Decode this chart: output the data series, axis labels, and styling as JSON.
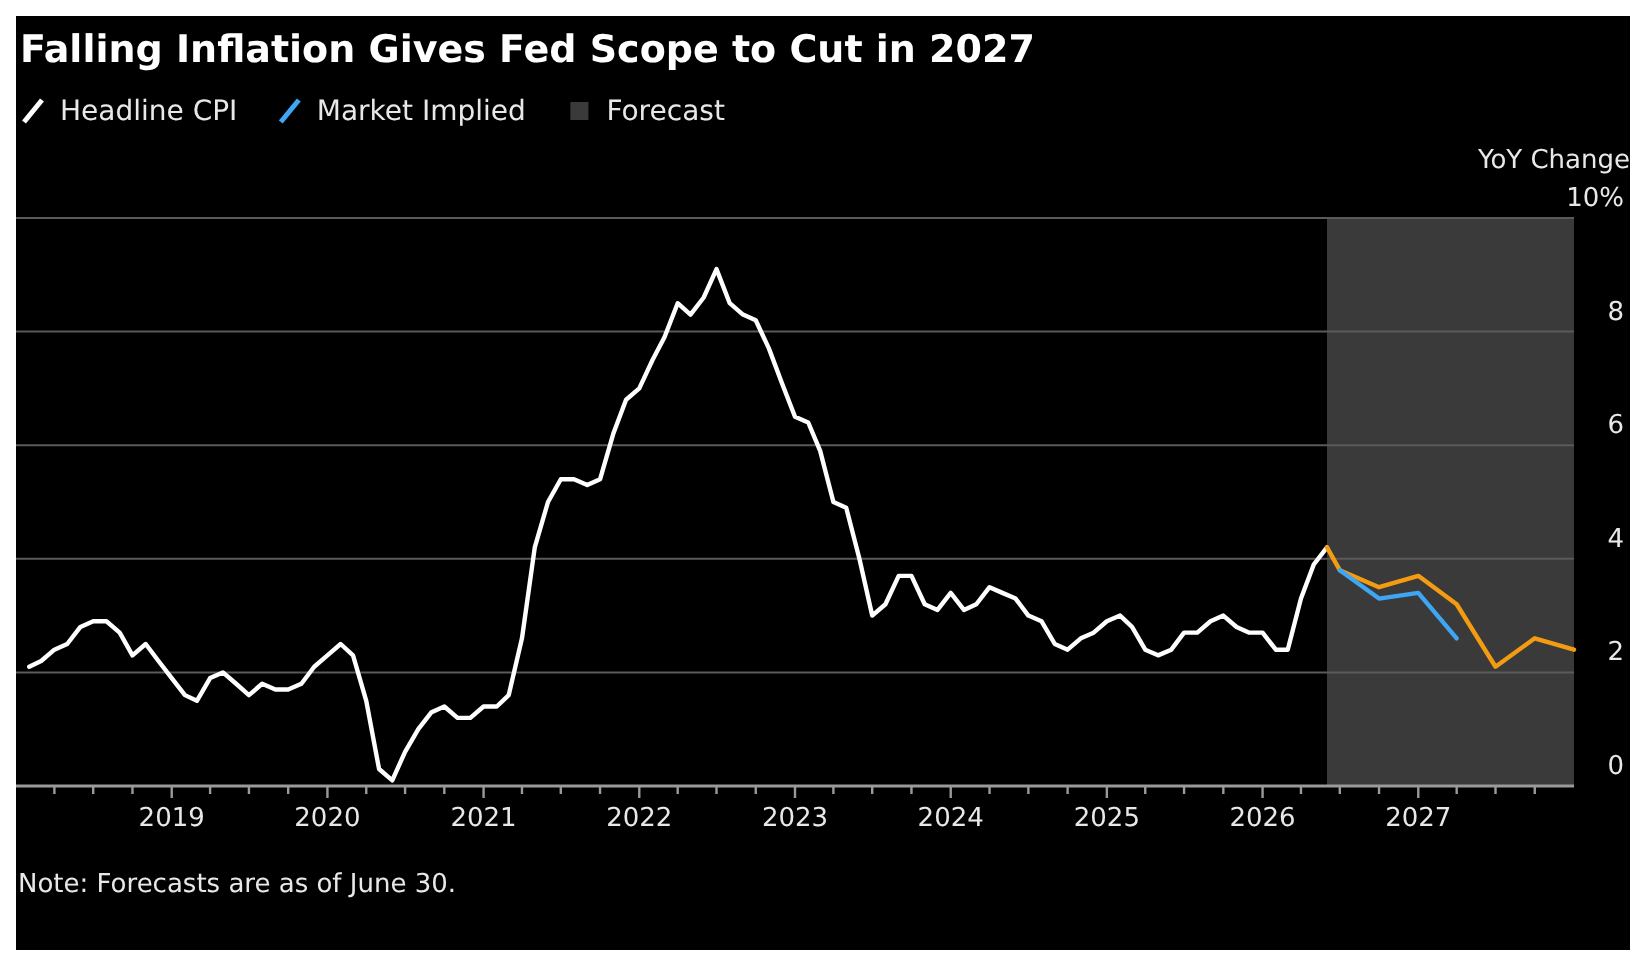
{
  "chart_data": {
    "type": "line",
    "title": "Falling Inflation Gives Fed Scope to Cut in 2027",
    "ylabel": "YoY Change",
    "annotations": [
      "Note: Forecasts are as of June 30."
    ],
    "x": [
      "2018-02",
      "2018-03",
      "2018-04",
      "2018-05",
      "2018-06",
      "2018-07",
      "2018-08",
      "2018-09",
      "2018-10",
      "2018-11",
      "2018-12",
      "2019-01",
      "2019-02",
      "2019-03",
      "2019-04",
      "2019-05",
      "2019-06",
      "2019-07",
      "2019-08",
      "2019-09",
      "2019-10",
      "2019-11",
      "2019-12",
      "2020-01",
      "2020-02",
      "2020-03",
      "2020-04",
      "2020-05",
      "2020-06",
      "2020-07",
      "2020-08",
      "2020-09",
      "2020-10",
      "2020-11",
      "2020-12",
      "2021-01",
      "2021-02",
      "2021-03",
      "2021-04",
      "2021-05",
      "2021-06",
      "2021-07",
      "2021-08",
      "2021-09",
      "2021-10",
      "2021-11",
      "2021-12",
      "2022-01",
      "2022-02",
      "2022-03",
      "2022-04",
      "2022-05",
      "2022-06",
      "2022-07",
      "2022-08",
      "2022-09",
      "2022-10",
      "2022-11",
      "2022-12",
      "2023-01",
      "2023-02",
      "2023-03",
      "2023-04",
      "2023-05",
      "2023-06",
      "2023-07",
      "2023-08",
      "2023-09",
      "2023-10",
      "2023-11",
      "2023-12",
      "2024-01",
      "2024-02",
      "2024-03",
      "2024-04",
      "2024-05",
      "2024-06",
      "2024-07",
      "2024-08",
      "2024-09",
      "2024-10",
      "2024-11",
      "2024-12",
      "2025-01",
      "2025-02",
      "2025-03",
      "2025-04",
      "2025-05",
      "2025-06",
      "2025-07",
      "2025-08",
      "2025-09",
      "2025-10",
      "2025-11",
      "2025-12",
      "2026-01",
      "2026-02",
      "2026-03",
      "2026-04",
      "2026-05",
      "2026-06"
    ],
    "series": [
      {
        "name": "Headline CPI",
        "color": "#ffffff",
        "values": [
          2.1,
          2.2,
          2.4,
          2.5,
          2.8,
          2.9,
          2.9,
          2.7,
          2.3,
          2.5,
          2.2,
          1.9,
          1.6,
          1.5,
          1.9,
          2.0,
          1.8,
          1.6,
          1.8,
          1.7,
          1.7,
          1.8,
          2.1,
          2.3,
          2.5,
          2.3,
          1.5,
          0.3,
          0.1,
          0.6,
          1.0,
          1.3,
          1.4,
          1.2,
          1.2,
          1.4,
          1.4,
          1.6,
          2.6,
          4.2,
          5.0,
          5.4,
          5.4,
          5.3,
          5.4,
          6.2,
          6.8,
          7.0,
          7.5,
          7.9,
          8.5,
          8.3,
          8.6,
          9.1,
          8.5,
          8.3,
          8.2,
          7.7,
          7.1,
          6.5,
          6.4,
          5.9,
          5.0,
          4.9,
          4.0,
          3.0,
          3.2,
          3.7,
          3.7,
          3.2,
          3.1,
          3.4,
          3.1,
          3.2,
          3.5,
          3.4,
          3.3,
          3.0,
          2.9,
          2.5,
          2.4,
          2.6,
          2.7,
          2.9,
          3.0,
          2.8,
          2.4,
          2.3,
          2.4,
          2.7,
          2.7,
          2.9,
          3.0,
          2.8,
          2.7,
          2.7,
          2.4,
          2.4,
          3.3,
          3.9,
          4.2
        ]
      },
      {
        "color": "#f39c12",
        "x": [
          "2026-06",
          "2026-07",
          "2026-10",
          "2027-01",
          "2027-04",
          "2027-07",
          "2027-10",
          "2028-01"
        ],
        "values": [
          4.2,
          3.8,
          3.5,
          3.7,
          3.2,
          2.1,
          2.6,
          2.4
        ]
      },
      {
        "name": "Market Implied",
        "color": "#3ea6f2",
        "x": [
          "2026-07",
          "2026-10",
          "2027-01",
          "2027-04"
        ],
        "values": [
          3.8,
          3.3,
          3.4,
          2.6
        ]
      }
    ],
    "bands": [
      {
        "axis": "x",
        "from": "2026-06",
        "to": "2028-01",
        "label": "Forecast",
        "color": "#3a3a3a"
      }
    ],
    "xlim": [
      "2018-01",
      "2028-01"
    ],
    "xticks": [
      {
        "value": "2018-04",
        "label": null
      },
      {
        "value": "2018-07",
        "label": null
      },
      {
        "value": "2018-10",
        "label": null
      },
      {
        "value": "2019-01",
        "label": "2019"
      },
      {
        "value": "2019-04",
        "label": null
      },
      {
        "value": "2019-07",
        "label": null
      },
      {
        "value": "2019-10",
        "label": null
      },
      {
        "value": "2020-01",
        "label": "2020"
      },
      {
        "value": "2020-04",
        "label": null
      },
      {
        "value": "2020-07",
        "label": null
      },
      {
        "value": "2020-10",
        "label": null
      },
      {
        "value": "2021-01",
        "label": "2021"
      },
      {
        "value": "2021-04",
        "label": null
      },
      {
        "value": "2021-07",
        "label": null
      },
      {
        "value": "2021-10",
        "label": null
      },
      {
        "value": "2022-01",
        "label": "2022"
      },
      {
        "value": "2022-04",
        "label": null
      },
      {
        "value": "2022-07",
        "label": null
      },
      {
        "value": "2022-10",
        "label": null
      },
      {
        "value": "2023-01",
        "label": "2023"
      },
      {
        "value": "2023-04",
        "label": null
      },
      {
        "value": "2023-07",
        "label": null
      },
      {
        "value": "2023-10",
        "label": null
      },
      {
        "value": "2024-01",
        "label": "2024"
      },
      {
        "value": "2024-04",
        "label": null
      },
      {
        "value": "2024-07",
        "label": null
      },
      {
        "value": "2024-10",
        "label": null
      },
      {
        "value": "2025-01",
        "label": "2025"
      },
      {
        "value": "2025-04",
        "label": null
      },
      {
        "value": "2025-07",
        "label": null
      },
      {
        "value": "2025-10",
        "label": null
      },
      {
        "value": "2026-01",
        "label": "2026"
      },
      {
        "value": "2026-04",
        "label": null
      },
      {
        "value": "2026-07",
        "label": null
      },
      {
        "value": "2026-10",
        "label": null
      },
      {
        "value": "2027-01",
        "label": "2027"
      },
      {
        "value": "2027-04",
        "label": null
      },
      {
        "value": "2027-07",
        "label": null
      },
      {
        "value": "2027-10",
        "label": null
      }
    ],
    "ylim": [
      0,
      10
    ],
    "yticks": [
      0,
      2,
      4,
      6,
      8,
      {
        "value": 10,
        "label": "10%"
      }
    ],
    "grid": "y",
    "legend": "top left",
    "line_style": "solid",
    "marker": "none"
  }
}
